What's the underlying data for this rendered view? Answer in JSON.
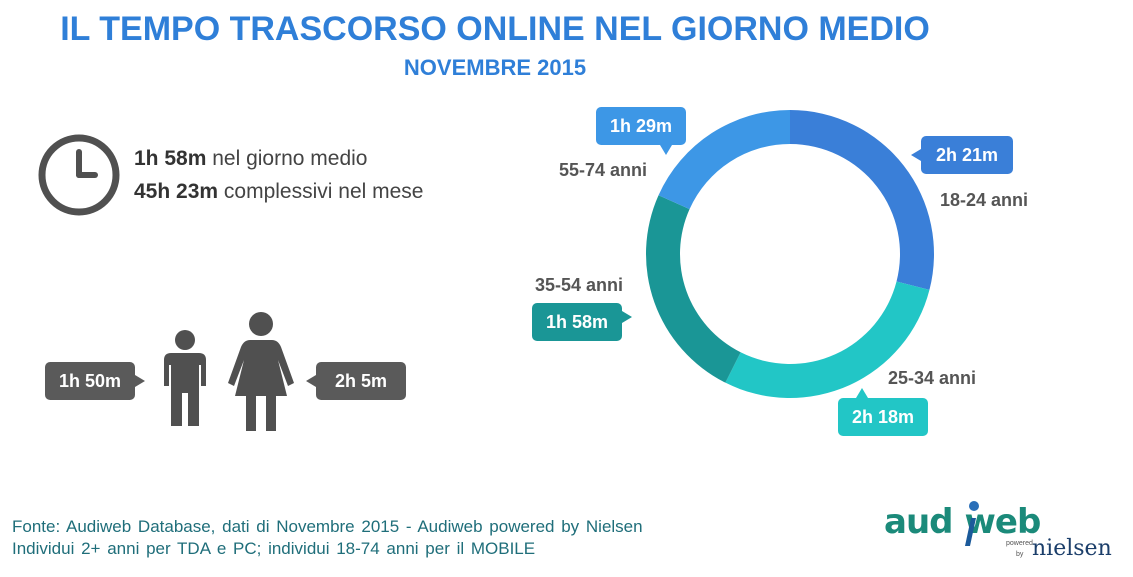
{
  "header": {
    "title": "IL TEMPO TRASCORSO ONLINE NEL GIORNO MEDIO",
    "subtitle": "NOVEMBRE 2015"
  },
  "stats": {
    "daily_value": "1h 58m",
    "daily_label": "nel giorno medio",
    "monthly_value": "45h 23m",
    "monthly_label": "complessivi  nel mese"
  },
  "gender": {
    "male_time": "1h 50m",
    "female_time": "2h 5m"
  },
  "age_groups": [
    {
      "label": "18-24 anni",
      "time": "2h 21m",
      "color": "#3a7fd8"
    },
    {
      "label": "25-34 anni",
      "time": "2h 18m",
      "color": "#22c6c6"
    },
    {
      "label": "35-54 anni",
      "time": "1h 58m",
      "color": "#1a9696"
    },
    {
      "label": "55-74 anni",
      "time": "1h 29m",
      "color": "#3d97e6"
    }
  ],
  "footer": {
    "line1": "Fonte: Audiweb  Database,  dati di Novembre  2015 - Audiweb  powered  by Nielsen",
    "line2": "Individui  2+ anni  per TDA e PC; individui  18-74  anni  per il MOBILE"
  },
  "logo": {
    "brand_part1": "aud",
    "brand_part2": "web",
    "powered": "powered",
    "by": "by",
    "partner": "nielsen"
  },
  "icons": [
    "clock-icon",
    "male-person-icon",
    "female-person-icon"
  ],
  "colors": {
    "title": "#2f7fd8",
    "bubble_gray": "#5a5a5a"
  }
}
